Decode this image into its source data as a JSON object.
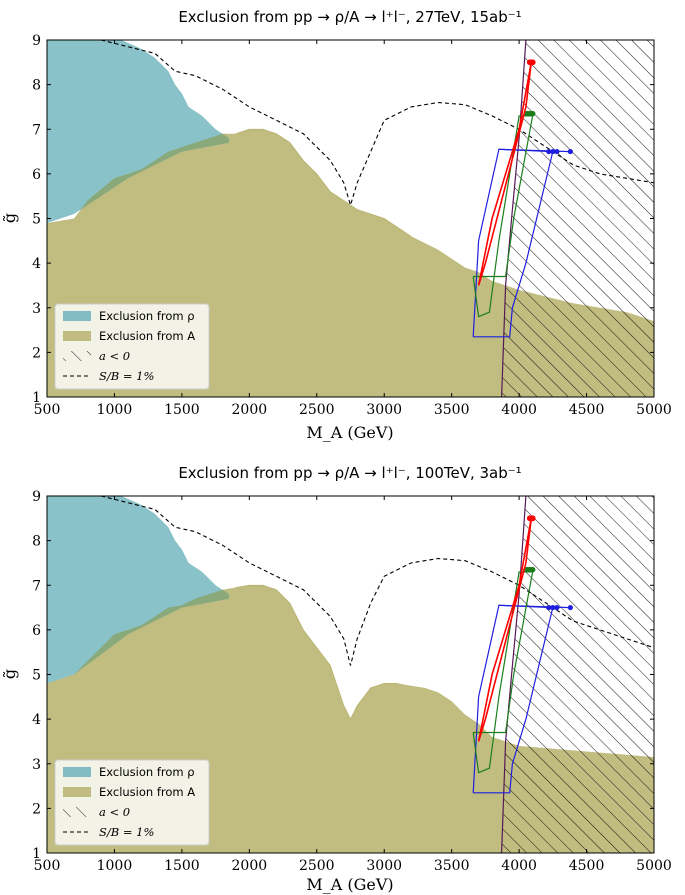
{
  "chart_data": [
    {
      "type": "area",
      "title": "Exclusion from pp → ρ/A → l⁺l⁻, 27TeV, 15ab⁻¹",
      "xlabel": "M_A (GeV)",
      "ylabel": "g̃",
      "xlim": [
        500,
        5000
      ],
      "ylim": [
        1,
        9
      ],
      "xticks": [
        "500",
        "1000",
        "1500",
        "2000",
        "2500",
        "3000",
        "3500",
        "4000",
        "4500",
        "5000"
      ],
      "yticks": [
        "1",
        "2",
        "3",
        "4",
        "5",
        "6",
        "7",
        "8",
        "9"
      ],
      "legend_position": "lower-left",
      "legend": [
        "Exclusion from ρ",
        "Exclusion from A",
        "a < 0",
        "S/B = 1%"
      ],
      "colors": {
        "rho": "#6bb3ba",
        "A": "#b6b16b",
        "overlap": "#8aa97a",
        "hatch": "#000000",
        "red": "#ff0000",
        "green": "#1a7f1a",
        "blue": "#1f1fe0",
        "boundary": "#551a55"
      },
      "series": [
        {
          "name": "Exclusion from ρ",
          "x": [
            500,
            500,
            900,
            1050,
            1200,
            1300,
            1400,
            1450,
            1500,
            1550,
            1650,
            1750,
            1850,
            1850,
            1500,
            1100,
            700,
            500
          ],
          "y": [
            1,
            9,
            9,
            9,
            8.8,
            8.6,
            8.3,
            8.0,
            7.8,
            7.5,
            7.3,
            7.0,
            6.8,
            6.7,
            6.5,
            5.9,
            5.1,
            4.9
          ]
        },
        {
          "name": "Exclusion from A",
          "x": [
            500,
            500,
            700,
            800,
            1000,
            1200,
            1300,
            1400,
            1500,
            1600,
            1700,
            1800,
            1900,
            2000,
            2100,
            2200,
            2300,
            2400,
            2500,
            2600,
            2700,
            2800,
            2900,
            3000,
            3100,
            3200,
            3300,
            3400,
            3500,
            3600,
            3700,
            3800,
            3900,
            4000,
            4200,
            4400,
            4600,
            4800,
            5000,
            5000
          ],
          "y": [
            1,
            4.9,
            5.0,
            5.4,
            5.9,
            6.1,
            6.3,
            6.5,
            6.6,
            6.7,
            6.8,
            6.9,
            6.9,
            7.0,
            7.0,
            6.9,
            6.7,
            6.3,
            6.0,
            5.6,
            5.4,
            5.2,
            5.1,
            5.0,
            4.8,
            4.6,
            4.45,
            4.3,
            4.1,
            3.9,
            3.8,
            3.6,
            3.5,
            3.4,
            3.25,
            3.1,
            3.0,
            2.9,
            2.7,
            1
          ]
        },
        {
          "name": "S/B = 1%",
          "x": [
            900,
            1300,
            1450,
            1600,
            1800,
            2000,
            2200,
            2400,
            2600,
            2700,
            2750,
            2800,
            2900,
            3000,
            3200,
            3400,
            3600,
            3800,
            4000,
            4200,
            4400,
            4600,
            4800,
            5000
          ],
          "y": [
            9,
            8.7,
            8.3,
            8.2,
            7.9,
            7.5,
            7.2,
            6.9,
            6.3,
            5.8,
            5.3,
            5.8,
            6.5,
            7.2,
            7.5,
            7.6,
            7.55,
            7.3,
            7.0,
            6.6,
            6.2,
            6.0,
            5.9,
            5.8
          ]
        },
        {
          "name": "a < 0",
          "x": [
            3870,
            3900,
            3950,
            4000,
            4050,
            5000,
            5000
          ],
          "y": [
            1,
            3.5,
            5.2,
            6.8,
            9,
            9,
            1
          ]
        }
      ]
    },
    {
      "type": "area",
      "title": "Exclusion from pp → ρ/A → l⁺l⁻, 100TeV, 3ab⁻¹",
      "xlabel": "M_A (GeV)",
      "ylabel": "g̃",
      "xlim": [
        500,
        5000
      ],
      "ylim": [
        1,
        9
      ],
      "xticks": [
        "500",
        "1000",
        "1500",
        "2000",
        "2500",
        "3000",
        "3500",
        "4000",
        "4500",
        "5000"
      ],
      "yticks": [
        "1",
        "2",
        "3",
        "4",
        "5",
        "6",
        "7",
        "8",
        "9"
      ],
      "legend_position": "lower-left",
      "legend": [
        "Exclusion from ρ",
        "Exclusion from A",
        "a < 0",
        "S/B = 1%"
      ],
      "colors": {
        "rho": "#6bb3ba",
        "A": "#b6b16b",
        "overlap": "#8aa97a",
        "hatch": "#000000",
        "red": "#ff0000",
        "green": "#1a7f1a",
        "blue": "#1f1fe0",
        "boundary": "#551a55"
      },
      "series": [
        {
          "name": "Exclusion from ρ",
          "x": [
            500,
            500,
            900,
            1050,
            1200,
            1300,
            1400,
            1450,
            1500,
            1550,
            1650,
            1750,
            1850,
            1850,
            1500,
            1100,
            700,
            500
          ],
          "y": [
            1,
            9,
            9,
            9,
            8.8,
            8.6,
            8.3,
            8.0,
            7.8,
            7.5,
            7.3,
            7.0,
            6.8,
            6.7,
            6.5,
            5.9,
            5.0,
            4.8
          ]
        },
        {
          "name": "Exclusion from A",
          "x": [
            500,
            500,
            700,
            800,
            1000,
            1200,
            1300,
            1400,
            1500,
            1600,
            1700,
            1800,
            1900,
            2000,
            2100,
            2200,
            2300,
            2400,
            2500,
            2600,
            2700,
            2750,
            2800,
            2900,
            3000,
            3100,
            3200,
            3300,
            3400,
            3500,
            3600,
            3700,
            3800,
            3900,
            4000,
            4200,
            4400,
            4600,
            4800,
            5000,
            5000
          ],
          "y": [
            1,
            4.8,
            5.0,
            5.3,
            5.9,
            6.1,
            6.3,
            6.5,
            6.55,
            6.7,
            6.8,
            6.9,
            6.95,
            7.0,
            7.0,
            6.9,
            6.6,
            6.0,
            5.6,
            5.2,
            4.3,
            4.0,
            4.3,
            4.7,
            4.8,
            4.8,
            4.75,
            4.7,
            4.6,
            4.4,
            4.1,
            3.9,
            3.6,
            3.5,
            3.4,
            3.35,
            3.3,
            3.25,
            3.2,
            3.15,
            1
          ]
        },
        {
          "name": "S/B = 1%",
          "x": [
            900,
            1300,
            1450,
            1600,
            1800,
            2000,
            2200,
            2400,
            2600,
            2700,
            2750,
            2800,
            2900,
            3000,
            3200,
            3400,
            3600,
            3800,
            4000,
            4200,
            4400,
            4600,
            4800,
            5000
          ],
          "y": [
            9,
            8.7,
            8.3,
            8.2,
            7.9,
            7.5,
            7.2,
            6.9,
            6.3,
            5.8,
            5.2,
            5.8,
            6.6,
            7.2,
            7.5,
            7.6,
            7.55,
            7.3,
            7.0,
            6.6,
            6.2,
            6.0,
            5.8,
            5.6
          ]
        },
        {
          "name": "a < 0",
          "x": [
            3870,
            3900,
            3950,
            4000,
            4050,
            5000,
            5000
          ],
          "y": [
            1,
            3.5,
            5.2,
            6.8,
            9,
            9,
            1
          ]
        }
      ]
    }
  ]
}
